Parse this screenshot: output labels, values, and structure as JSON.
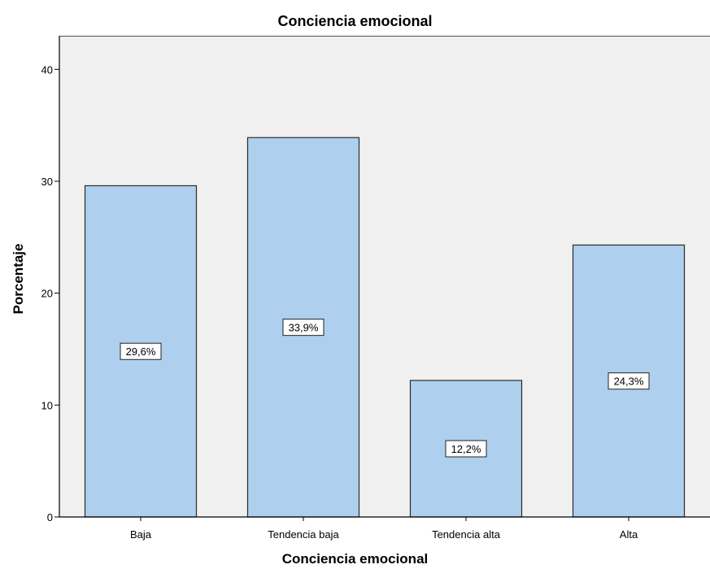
{
  "chart_data": {
    "type": "bar",
    "title": "Conciencia emocional",
    "xlabel": "Conciencia emocional",
    "ylabel": "Porcentaje",
    "categories": [
      "Baja",
      "Tendencia baja",
      "Tendencia alta",
      "Alta"
    ],
    "values": [
      29.6,
      33.9,
      12.2,
      24.3
    ],
    "data_labels": [
      "29,6%",
      "33,9%",
      "12,2%",
      "24,3%"
    ],
    "ylim": [
      0,
      43
    ],
    "yticks": [
      0,
      10,
      20,
      30,
      40
    ],
    "grid": false,
    "colors": {
      "bar_fill": "#aed0ee",
      "bar_stroke": "#2b2b2b",
      "plot_background": "#f0f0f0",
      "axis": "#000000"
    }
  }
}
